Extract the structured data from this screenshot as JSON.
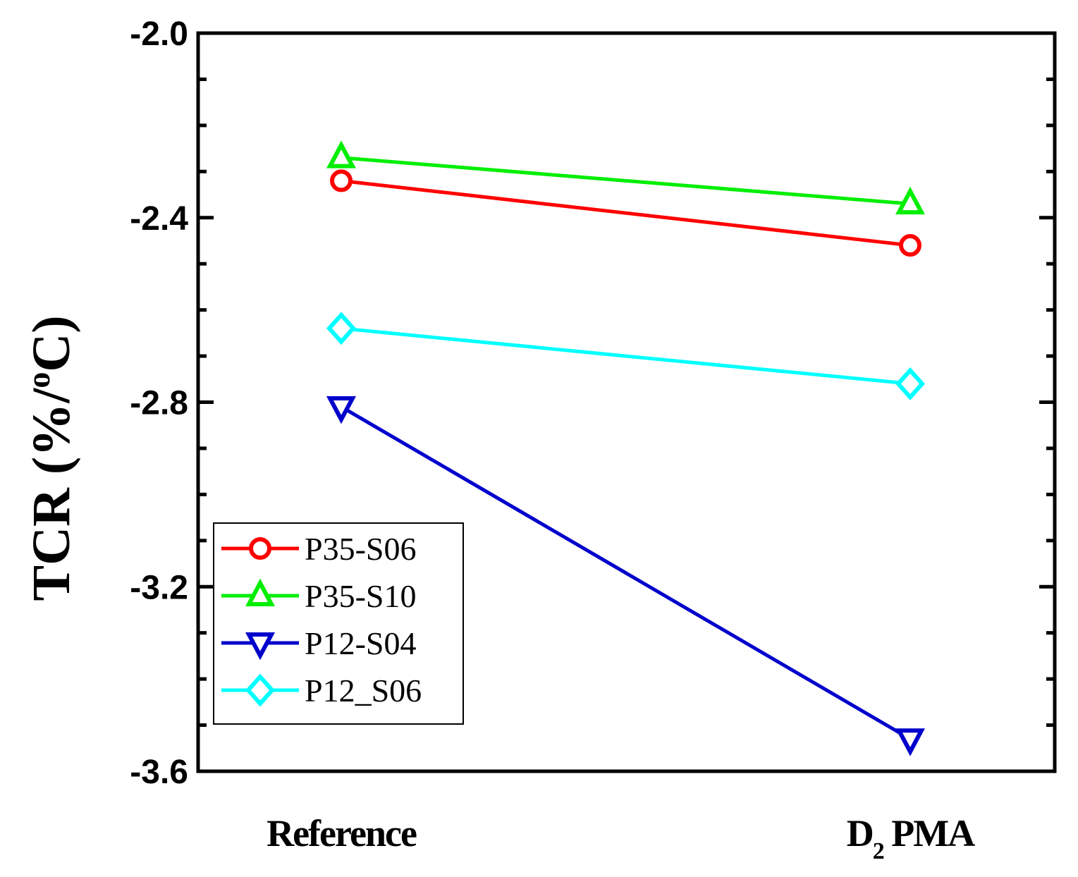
{
  "chart_data": {
    "type": "line",
    "title": "",
    "xlabel": "",
    "ylabel": "TCR (%/°C)",
    "ylabel_parts": {
      "main": "TCR (",
      "percent": "%",
      "slash": "/",
      "degree": "o",
      "unit": "C)"
    },
    "categories": [
      "Reference",
      "D2 PMA"
    ],
    "category_labels": [
      {
        "main": "Reference",
        "sub": "",
        "rest": ""
      },
      {
        "main": "D",
        "sub": "2",
        "rest": " PMA"
      }
    ],
    "ylim": [
      -3.6,
      -2.0
    ],
    "yticks": [
      -2.0,
      -2.4,
      -2.8,
      -3.2,
      -3.6
    ],
    "ytick_labels": [
      "-2.0",
      "-2.4",
      "-2.8",
      "-3.2",
      "-3.6"
    ],
    "minor_tick_step": 0.1,
    "grid": false,
    "legend_position": "bottom-left",
    "series": [
      {
        "name": "P35-S06",
        "values": [
          -2.32,
          -2.46
        ],
        "color": "#ff0000",
        "marker": "circle"
      },
      {
        "name": "P35-S10",
        "values": [
          -2.27,
          -2.37
        ],
        "color": "#00ee00",
        "marker": "triangle-up"
      },
      {
        "name": "P12-S04",
        "values": [
          -2.81,
          -3.53
        ],
        "color": "#0000cc",
        "marker": "triangle-down"
      },
      {
        "name": "P12_S06",
        "values": [
          -2.64,
          -2.76
        ],
        "color": "#00ffff",
        "marker": "diamond"
      }
    ]
  }
}
